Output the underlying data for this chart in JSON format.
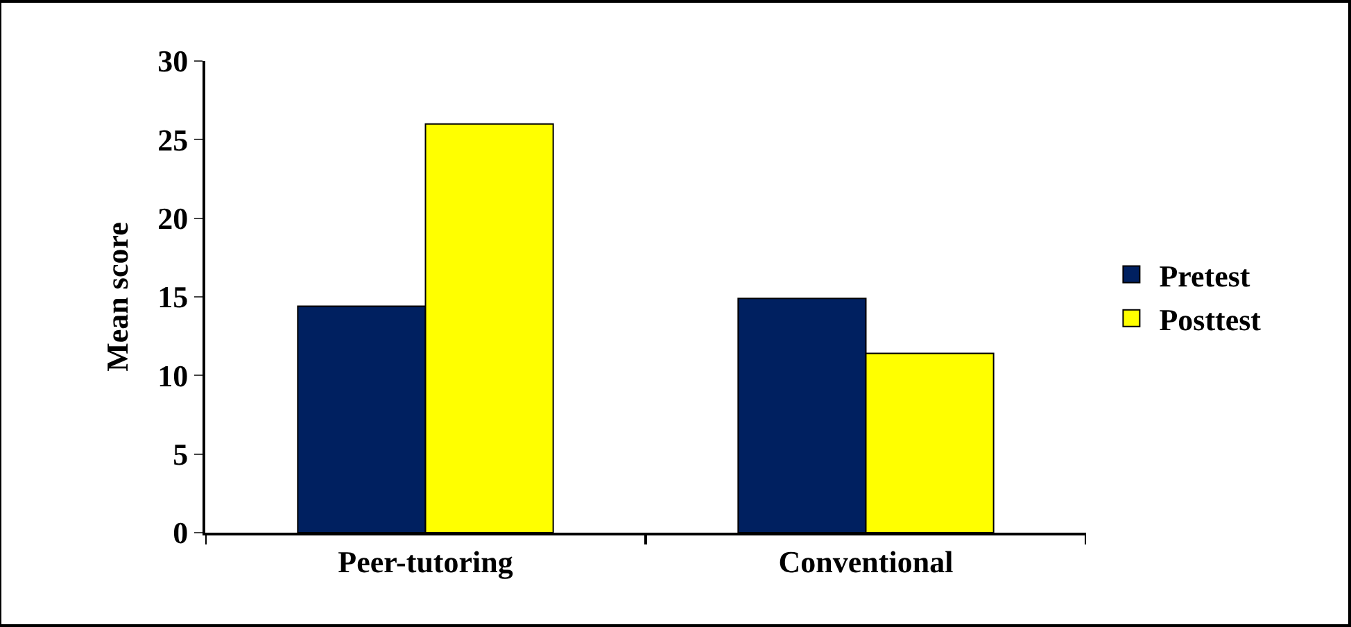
{
  "chart_data": {
    "type": "bar",
    "ylabel": "Mean score",
    "categories": [
      "Peer-tutoring",
      "Conventional"
    ],
    "series": [
      {
        "name": "Pretest",
        "color": "#002060",
        "values": [
          14.4,
          14.9
        ]
      },
      {
        "name": "Posttest",
        "color": "#ffff00",
        "values": [
          26.0,
          11.4
        ]
      }
    ],
    "ylim": [
      0,
      30
    ],
    "yticks": [
      0,
      5,
      10,
      15,
      20,
      25,
      30
    ],
    "legend": "right"
  }
}
